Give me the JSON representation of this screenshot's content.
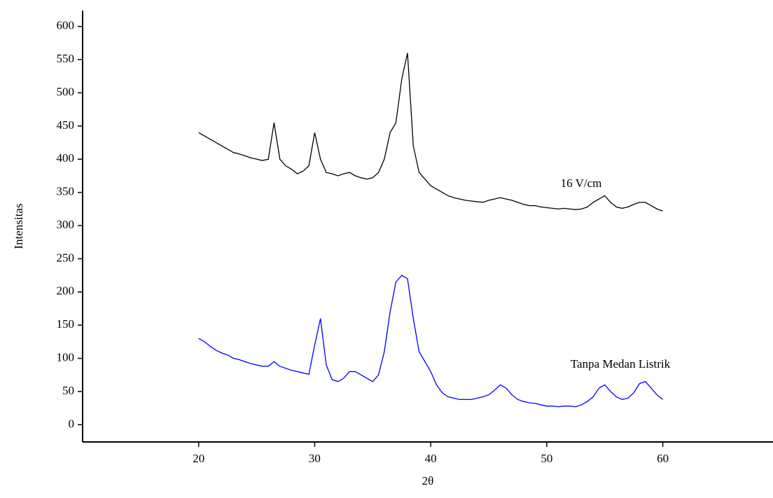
{
  "chart_data": {
    "type": "line",
    "xlabel": "2θ",
    "ylabel": "Intensitas",
    "x": [
      20,
      20.5,
      21,
      21.5,
      22,
      22.5,
      23,
      23.5,
      24,
      24.5,
      25,
      25.5,
      26,
      26.5,
      27,
      27.5,
      28,
      28.5,
      29,
      29.5,
      30,
      30.5,
      31,
      31.5,
      32,
      32.5,
      33,
      33.5,
      34,
      34.5,
      35,
      35.5,
      36,
      36.5,
      37,
      37.5,
      38,
      38.5,
      39,
      39.5,
      40,
      40.5,
      41,
      41.5,
      42,
      42.5,
      43,
      43.5,
      44,
      44.5,
      45,
      45.5,
      46,
      46.5,
      47,
      47.5,
      48,
      48.5,
      49,
      49.5,
      50,
      50.5,
      51,
      51.5,
      52,
      52.5,
      53,
      53.5,
      54,
      54.5,
      55,
      55.5,
      56,
      56.5,
      57,
      57.5,
      58,
      58.5,
      59,
      59.5,
      60
    ],
    "series": [
      {
        "name": "16 V/cm",
        "color": "#000000",
        "values": [
          440,
          435,
          430,
          425,
          420,
          415,
          410,
          408,
          405,
          402,
          400,
          398,
          400,
          455,
          400,
          390,
          385,
          378,
          382,
          390,
          440,
          400,
          380,
          378,
          375,
          378,
          380,
          375,
          372,
          370,
          372,
          380,
          400,
          440,
          455,
          520,
          560,
          420,
          380,
          370,
          360,
          355,
          350,
          345,
          342,
          340,
          338,
          337,
          336,
          335,
          338,
          340,
          342,
          340,
          338,
          335,
          332,
          330,
          330,
          328,
          327,
          326,
          325,
          326,
          325,
          324,
          325,
          328,
          335,
          340,
          345,
          335,
          328,
          326,
          328,
          332,
          335,
          335,
          330,
          325,
          322
        ]
      },
      {
        "name": "Tanpa Medan Listrik",
        "color": "#0000ff",
        "values": [
          130,
          125,
          118,
          112,
          108,
          105,
          100,
          98,
          95,
          92,
          90,
          88,
          88,
          95,
          88,
          85,
          82,
          80,
          78,
          76,
          120,
          160,
          90,
          68,
          65,
          70,
          80,
          80,
          75,
          70,
          65,
          75,
          110,
          170,
          215,
          225,
          220,
          160,
          110,
          95,
          80,
          60,
          48,
          42,
          40,
          38,
          38,
          38,
          40,
          42,
          45,
          52,
          60,
          55,
          45,
          38,
          35,
          33,
          32,
          30,
          28,
          28,
          27,
          28,
          28,
          27,
          30,
          35,
          42,
          55,
          60,
          50,
          42,
          38,
          40,
          48,
          62,
          65,
          55,
          45,
          38
        ]
      }
    ],
    "xlim": [
      10,
      69.5
    ],
    "ylim": [
      -26,
      624
    ],
    "xticks": [
      20,
      30,
      40,
      50,
      60
    ],
    "yticks": [
      0,
      50,
      100,
      150,
      200,
      250,
      300,
      350,
      400,
      450,
      500,
      550,
      600
    ]
  }
}
